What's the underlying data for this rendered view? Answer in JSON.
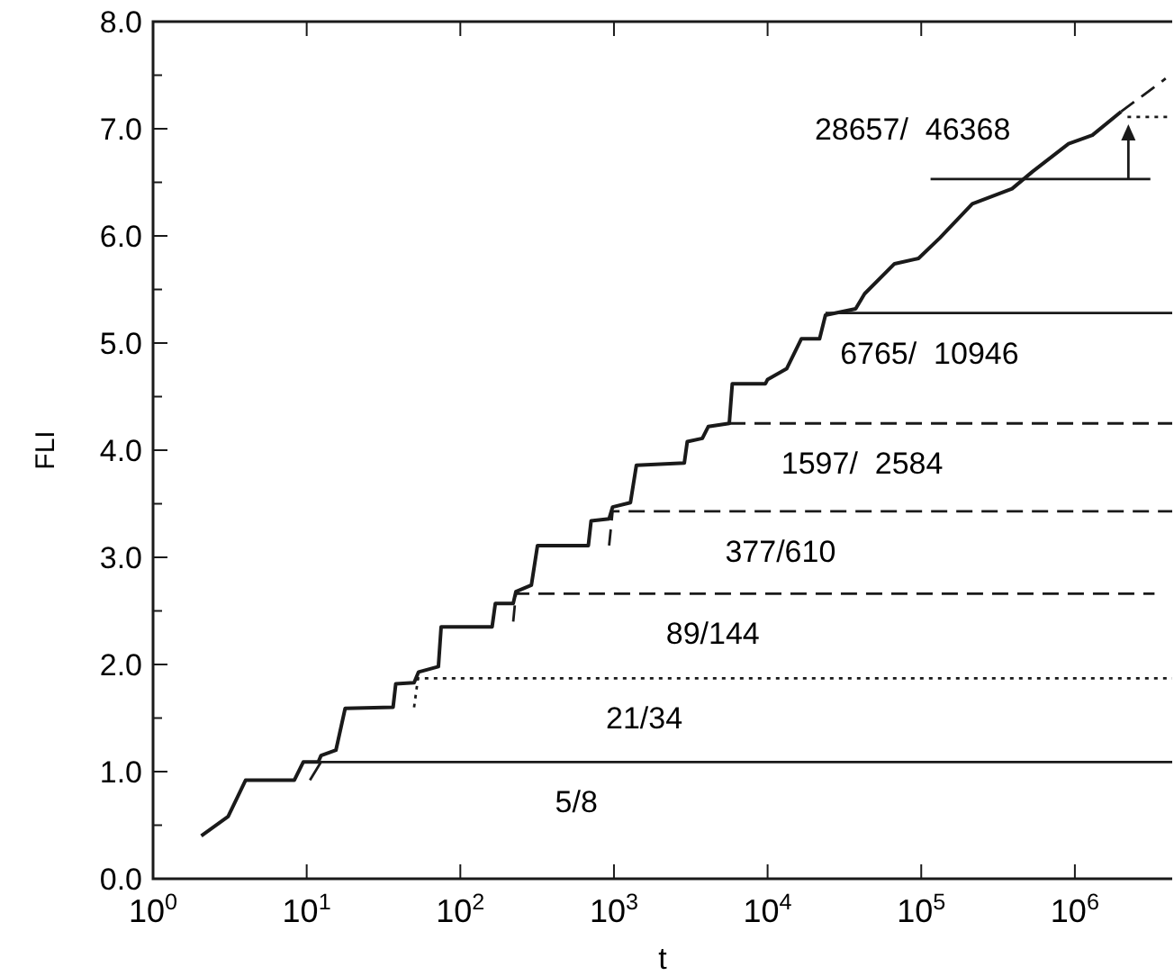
{
  "chart_data": {
    "type": "line",
    "xlabel": "t",
    "ylabel": "FLI",
    "log": "x",
    "grid": false,
    "marker": "none",
    "xlim": [
      1,
      4300000
    ],
    "ylim": [
      0,
      8
    ],
    "xticks": [
      {
        "value": 1,
        "label": "10$^{0}$"
      },
      {
        "value": 10,
        "label": "10$^{1}$"
      },
      {
        "value": 100,
        "label": "10$^{2}$"
      },
      {
        "value": 1000,
        "label": "10$^{3}$"
      },
      {
        "value": 10000,
        "label": "10$^{4}$"
      },
      {
        "value": 100000,
        "label": "10$^{5}$"
      },
      {
        "value": 1000000,
        "label": "10$^{6}$"
      }
    ],
    "yticks": [
      {
        "value": 0,
        "label": "0.0"
      },
      {
        "value": 0.5,
        "label": null
      },
      {
        "value": 1,
        "label": "1.0"
      },
      {
        "value": 1.5,
        "label": null
      },
      {
        "value": 2,
        "label": "2.0"
      },
      {
        "value": 2.5,
        "label": null
      },
      {
        "value": 3,
        "label": "3.0"
      },
      {
        "value": 3.5,
        "label": null
      },
      {
        "value": 4,
        "label": "4.0"
      },
      {
        "value": 4.5,
        "label": null
      },
      {
        "value": 5,
        "label": "5.0"
      },
      {
        "value": 5.5,
        "label": null
      },
      {
        "value": 6,
        "label": "6.0"
      },
      {
        "value": 6.5,
        "label": null
      },
      {
        "value": 7,
        "label": "7.0"
      },
      {
        "value": 7.5,
        "label": null
      },
      {
        "value": 8,
        "label": "8.0"
      }
    ],
    "series": [
      {
        "color": "#1a1a1a",
        "line_style": "solid",
        "x": [
          2.06,
          3.08,
          4.0,
          8.3,
          9.5,
          11.9,
          12.4,
          15.5,
          17.8,
          36.5,
          38,
          50,
          53.5,
          72,
          75,
          161,
          169,
          221,
          230,
          290,
          318,
          681,
          710,
          930,
          980,
          1280,
          1400,
          2870,
          3000,
          3760,
          4110,
          5630,
          5890,
          9680,
          10000,
          13300,
          16600,
          21800,
          23800,
          37400,
          42800,
          67000,
          96000,
          132000,
          215000,
          390000,
          530000,
          910000,
          1300000,
          2000000
        ],
        "values": [
          0.4,
          0.58,
          0.92,
          0.92,
          1.09,
          1.09,
          1.15,
          1.2,
          1.59,
          1.6,
          1.82,
          1.83,
          1.93,
          1.98,
          2.35,
          2.35,
          2.57,
          2.57,
          2.68,
          2.74,
          3.11,
          3.11,
          3.34,
          3.36,
          3.47,
          3.51,
          3.86,
          3.88,
          4.08,
          4.11,
          4.22,
          4.25,
          4.62,
          4.62,
          4.66,
          4.76,
          5.04,
          5.04,
          5.26,
          5.32,
          5.46,
          5.74,
          5.79,
          5.98,
          6.3,
          6.44,
          6.6,
          6.86,
          6.94,
          7.16
        ]
      },
      {
        "color": "#1a1a1a",
        "line_style": "dashed",
        "x": [
          2000000,
          3670000,
          3900000
        ],
        "values": [
          7.16,
          7.44,
          7.47
        ]
      },
      {
        "name": "5/8",
        "color": "#1a1a1a",
        "line_style": "solid",
        "x": [
          10.5,
          12.4,
          4300000
        ],
        "values": [
          0.92,
          1.09,
          1.09
        ]
      },
      {
        "name": "21/34",
        "color": "#1a1a1a",
        "line_style": "dotted",
        "x": [
          50,
          53,
          4300000
        ],
        "values": [
          1.6,
          1.87,
          1.87
        ]
      },
      {
        "name": "89/144",
        "color": "#1a1a1a",
        "line_style": "dashed",
        "x": [
          221,
          230,
          3300000
        ],
        "values": [
          2.4,
          2.66,
          2.66
        ]
      },
      {
        "name": "377/610",
        "color": "#1a1a1a",
        "line_style": "dashed",
        "x": [
          930,
          980,
          4300000
        ],
        "values": [
          3.11,
          3.43,
          3.43
        ]
      },
      {
        "name": "1597/  2584",
        "color": "#1a1a1a",
        "line_style": "dashed",
        "x": [
          5630,
          4300000
        ],
        "values": [
          4.25,
          4.25
        ]
      },
      {
        "name": "6765/  10946",
        "color": "#1a1a1a",
        "line_style": "solid",
        "x": [
          23800,
          4300000
        ],
        "values": [
          5.28,
          5.28
        ]
      },
      {
        "color": "#1a1a1a",
        "line_style": "dotted",
        "x": [
          2200000,
          4200000
        ],
        "values": [
          7.11,
          7.11
        ]
      },
      {
        "name": "28657/  46368",
        "color": "#1a1a1a",
        "line_style": "solid",
        "x": [
          115000,
          3100000
        ],
        "values": [
          6.53,
          6.53
        ]
      }
    ]
  }
}
